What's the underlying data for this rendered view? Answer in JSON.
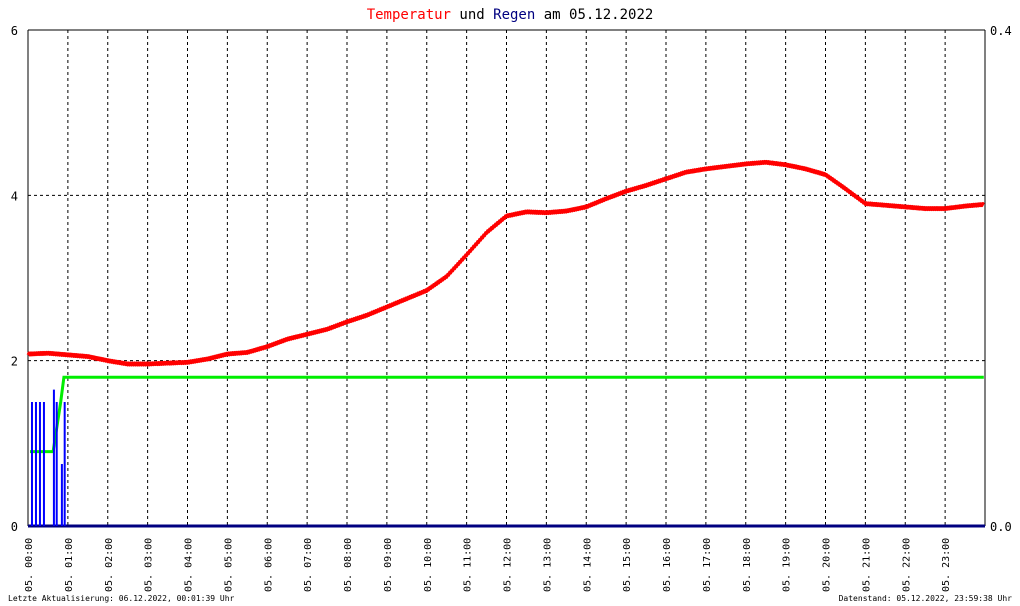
{
  "chart_data": {
    "type": "line",
    "title_parts": [
      {
        "text": "Temperatur",
        "color": "#ff0000"
      },
      {
        "text": " und ",
        "color": "#000000"
      },
      {
        "text": "Regen",
        "color": "#000080"
      },
      {
        "text": " am 05.12.2022",
        "color": "#000000"
      }
    ],
    "x_ticks": [
      "05. 00:00",
      "05. 01:00",
      "05. 02:00",
      "05. 03:00",
      "05. 04:00",
      "05. 05:00",
      "05. 06:00",
      "05. 07:00",
      "05. 08:00",
      "05. 09:00",
      "05. 10:00",
      "05. 11:00",
      "05. 12:00",
      "05. 13:00",
      "05. 14:00",
      "05. 15:00",
      "05. 16:00",
      "05. 17:00",
      "05. 18:00",
      "05. 19:00",
      "05. 20:00",
      "05. 21:00",
      "05. 22:00",
      "05. 23:00"
    ],
    "x_range_hours": [
      0,
      24
    ],
    "y_left_ticks": [
      "0",
      "2",
      "4",
      "6"
    ],
    "y_left_range": [
      0,
      6
    ],
    "y_right_ticks": [
      "0.0",
      "0.4"
    ],
    "y_right_range": [
      0,
      0.4
    ],
    "grid": true,
    "series": [
      {
        "key": "temperature",
        "color": "#ff0000",
        "axis": "left",
        "x": [
          0,
          0.5,
          1,
          1.5,
          2,
          2.5,
          3,
          3.5,
          4,
          4.5,
          5,
          5.5,
          6,
          6.5,
          7,
          7.5,
          8,
          8.5,
          9,
          9.5,
          10,
          10.5,
          11,
          11.5,
          12,
          12.5,
          13,
          13.5,
          14,
          14.5,
          15,
          15.5,
          16,
          16.5,
          17,
          17.5,
          18,
          18.5,
          19,
          19.5,
          20,
          20.5,
          21,
          21.5,
          22,
          22.5,
          23,
          23.5,
          23.97
        ],
        "y": [
          2.08,
          2.09,
          2.07,
          2.05,
          2.0,
          1.96,
          1.96,
          1.97,
          1.98,
          2.02,
          2.08,
          2.1,
          2.17,
          2.26,
          2.32,
          2.38,
          2.47,
          2.55,
          2.65,
          2.75,
          2.85,
          3.02,
          3.28,
          3.55,
          3.75,
          3.8,
          3.79,
          3.81,
          3.86,
          3.96,
          4.05,
          4.12,
          4.2,
          4.28,
          4.32,
          4.35,
          4.38,
          4.4,
          4.37,
          4.32,
          4.25,
          4.08,
          3.9,
          3.88,
          3.86,
          3.84,
          3.84,
          3.87,
          3.89
        ]
      },
      {
        "key": "rain_cumulative",
        "color": "#00ee00",
        "axis": "right",
        "x": [
          0.05,
          0.3,
          0.31,
          0.62,
          0.63,
          0.82,
          0.9,
          23.97
        ],
        "y": [
          0.06,
          0.06,
          0.06,
          0.06,
          0.06,
          0.1,
          0.12,
          0.12
        ]
      },
      {
        "key": "rain_rate",
        "color": "#0000ff",
        "axis": "right",
        "x": [
          0.1,
          0.2,
          0.3,
          0.4,
          0.65,
          0.72,
          0.85,
          0.92
        ],
        "y": [
          0.1,
          0.1,
          0.1,
          0.1,
          0.11,
          0.1,
          0.05,
          0.1
        ]
      }
    ],
    "footer_left": "Letzte Aktualisierung: 06.12.2022, 00:01:39 Uhr",
    "footer_right": "Datenstand: 05.12.2022, 23:59:38 Uhr"
  }
}
